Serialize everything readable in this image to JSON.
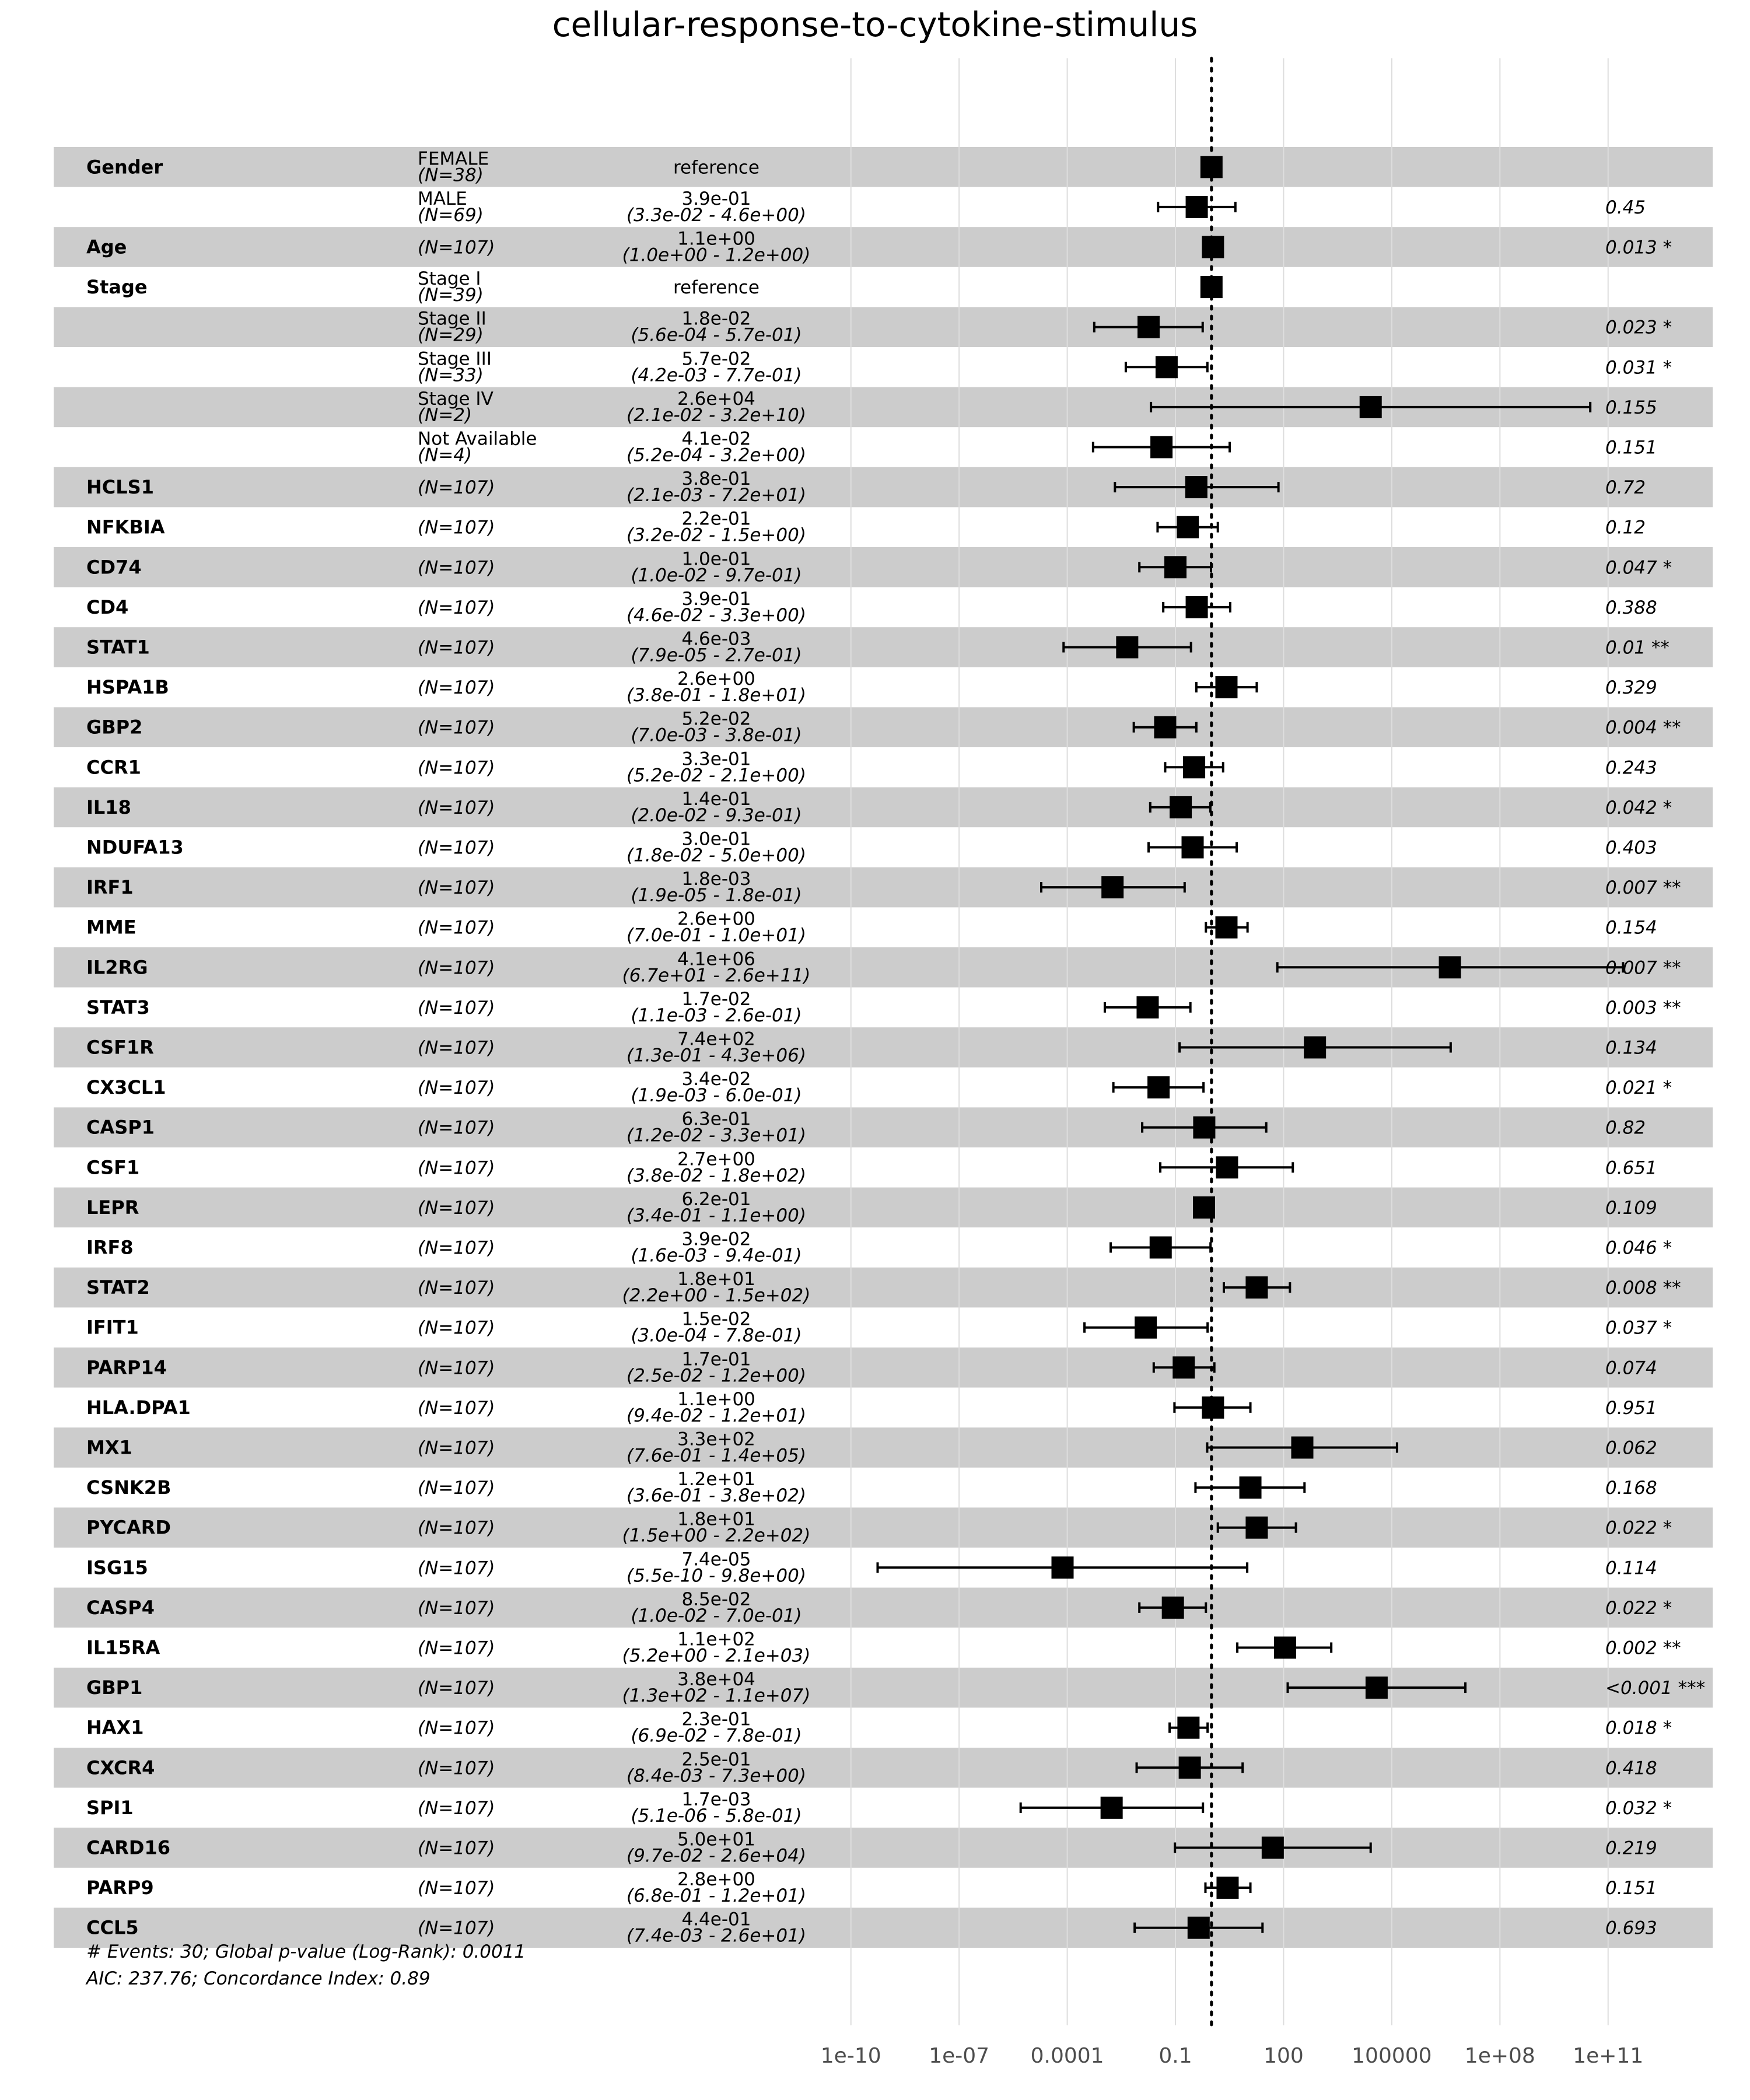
{
  "chart_data": {
    "type": "forest",
    "title": "cellular-response-to-cytokine-stimulus",
    "xscale": "log10",
    "xlim_log10": [
      -11.5,
      13.9
    ],
    "reference_line": 1,
    "x_ticks": [
      {
        "label": "1e-10",
        "value": 1e-10
      },
      {
        "label": "1e-07",
        "value": 1e-07
      },
      {
        "label": "0.0001",
        "value": 0.0001
      },
      {
        "label": "0.1",
        "value": 0.1
      },
      {
        "label": "100",
        "value": 100
      },
      {
        "label": "100000",
        "value": 100000
      },
      {
        "label": "1e+08",
        "value": 100000000.0
      },
      {
        "label": "1e+11",
        "value": 100000000000.0
      }
    ],
    "grid": true,
    "rows": [
      {
        "variable": "Gender",
        "level": "FEMALE",
        "n": "(N=38)",
        "est_text": "reference",
        "ci_text": "",
        "p_text": "",
        "hr": 1,
        "lo": null,
        "hi": null
      },
      {
        "variable": "",
        "level": "MALE",
        "n": "(N=69)",
        "est_text": "3.9e-01",
        "ci_text": "(3.3e-02 - 4.6e+00)",
        "p_text": "0.45",
        "hr": 0.39,
        "lo": 0.033,
        "hi": 4.6
      },
      {
        "variable": "Age",
        "level": "",
        "n": "(N=107)",
        "est_text": "1.1e+00",
        "ci_text": "(1.0e+00 - 1.2e+00)",
        "p_text": "0.013 *",
        "hr": 1.1,
        "lo": 1.0,
        "hi": 1.2
      },
      {
        "variable": "Stage",
        "level": "Stage I",
        "n": "(N=39)",
        "est_text": "reference",
        "ci_text": "",
        "p_text": "",
        "hr": 1,
        "lo": null,
        "hi": null
      },
      {
        "variable": "",
        "level": "Stage II",
        "n": "(N=29)",
        "est_text": "1.8e-02",
        "ci_text": "(5.6e-04 - 5.7e-01)",
        "p_text": "0.023 *",
        "hr": 0.018,
        "lo": 0.00056,
        "hi": 0.57
      },
      {
        "variable": "",
        "level": "Stage III",
        "n": "(N=33)",
        "est_text": "5.7e-02",
        "ci_text": "(4.2e-03 - 7.7e-01)",
        "p_text": "0.031 *",
        "hr": 0.057,
        "lo": 0.0042,
        "hi": 0.77
      },
      {
        "variable": "",
        "level": "Stage IV",
        "n": "(N=2)",
        "est_text": "2.6e+04",
        "ci_text": "(2.1e-02 - 3.2e+10)",
        "p_text": "0.155",
        "hr": 26000,
        "lo": 0.021,
        "hi": 32000000000.0
      },
      {
        "variable": "",
        "level": "Not Available",
        "n": "(N=4)",
        "est_text": "4.1e-02",
        "ci_text": "(5.2e-04 - 3.2e+00)",
        "p_text": "0.151",
        "hr": 0.041,
        "lo": 0.00052,
        "hi": 3.2
      },
      {
        "variable": "HCLS1",
        "level": "",
        "n": "(N=107)",
        "est_text": "3.8e-01",
        "ci_text": "(2.1e-03 - 7.2e+01)",
        "p_text": "0.72",
        "hr": 0.38,
        "lo": 0.0021,
        "hi": 72
      },
      {
        "variable": "NFKBIA",
        "level": "",
        "n": "(N=107)",
        "est_text": "2.2e-01",
        "ci_text": "(3.2e-02 - 1.5e+00)",
        "p_text": "0.12",
        "hr": 0.22,
        "lo": 0.032,
        "hi": 1.5
      },
      {
        "variable": "CD74",
        "level": "",
        "n": "(N=107)",
        "est_text": "1.0e-01",
        "ci_text": "(1.0e-02 - 9.7e-01)",
        "p_text": "0.047 *",
        "hr": 0.1,
        "lo": 0.01,
        "hi": 0.97
      },
      {
        "variable": "CD4",
        "level": "",
        "n": "(N=107)",
        "est_text": "3.9e-01",
        "ci_text": "(4.6e-02 - 3.3e+00)",
        "p_text": "0.388",
        "hr": 0.39,
        "lo": 0.046,
        "hi": 3.3
      },
      {
        "variable": "STAT1",
        "level": "",
        "n": "(N=107)",
        "est_text": "4.6e-03",
        "ci_text": "(7.9e-05 - 2.7e-01)",
        "p_text": "0.01 **",
        "hr": 0.0046,
        "lo": 7.9e-05,
        "hi": 0.27
      },
      {
        "variable": "HSPA1B",
        "level": "",
        "n": "(N=107)",
        "est_text": "2.6e+00",
        "ci_text": "(3.8e-01 - 1.8e+01)",
        "p_text": "0.329",
        "hr": 2.6,
        "lo": 0.38,
        "hi": 18
      },
      {
        "variable": "GBP2",
        "level": "",
        "n": "(N=107)",
        "est_text": "5.2e-02",
        "ci_text": "(7.0e-03 - 3.8e-01)",
        "p_text": "0.004 **",
        "hr": 0.052,
        "lo": 0.007,
        "hi": 0.38
      },
      {
        "variable": "CCR1",
        "level": "",
        "n": "(N=107)",
        "est_text": "3.3e-01",
        "ci_text": "(5.2e-02 - 2.1e+00)",
        "p_text": "0.243",
        "hr": 0.33,
        "lo": 0.052,
        "hi": 2.1
      },
      {
        "variable": "IL18",
        "level": "",
        "n": "(N=107)",
        "est_text": "1.4e-01",
        "ci_text": "(2.0e-02 - 9.3e-01)",
        "p_text": "0.042 *",
        "hr": 0.14,
        "lo": 0.02,
        "hi": 0.93
      },
      {
        "variable": "NDUFA13",
        "level": "",
        "n": "(N=107)",
        "est_text": "3.0e-01",
        "ci_text": "(1.8e-02 - 5.0e+00)",
        "p_text": "0.403",
        "hr": 0.3,
        "lo": 0.018,
        "hi": 5.0
      },
      {
        "variable": "IRF1",
        "level": "",
        "n": "(N=107)",
        "est_text": "1.8e-03",
        "ci_text": "(1.9e-05 - 1.8e-01)",
        "p_text": "0.007 **",
        "hr": 0.0018,
        "lo": 1.9e-05,
        "hi": 0.18
      },
      {
        "variable": "MME",
        "level": "",
        "n": "(N=107)",
        "est_text": "2.6e+00",
        "ci_text": "(7.0e-01 - 1.0e+01)",
        "p_text": "0.154",
        "hr": 2.6,
        "lo": 0.7,
        "hi": 10
      },
      {
        "variable": "IL2RG",
        "level": "",
        "n": "(N=107)",
        "est_text": "4.1e+06",
        "ci_text": "(6.7e+01 - 2.6e+11)",
        "p_text": "0.007 **",
        "hr": 4100000,
        "lo": 67,
        "hi": 260000000000.0
      },
      {
        "variable": "STAT3",
        "level": "",
        "n": "(N=107)",
        "est_text": "1.7e-02",
        "ci_text": "(1.1e-03 - 2.6e-01)",
        "p_text": "0.003 **",
        "hr": 0.017,
        "lo": 0.0011,
        "hi": 0.26
      },
      {
        "variable": "CSF1R",
        "level": "",
        "n": "(N=107)",
        "est_text": "7.4e+02",
        "ci_text": "(1.3e-01 - 4.3e+06)",
        "p_text": "0.134",
        "hr": 740,
        "lo": 0.13,
        "hi": 4300000
      },
      {
        "variable": "CX3CL1",
        "level": "",
        "n": "(N=107)",
        "est_text": "3.4e-02",
        "ci_text": "(1.9e-03 - 6.0e-01)",
        "p_text": "0.021 *",
        "hr": 0.034,
        "lo": 0.0019,
        "hi": 0.6
      },
      {
        "variable": "CASP1",
        "level": "",
        "n": "(N=107)",
        "est_text": "6.3e-01",
        "ci_text": "(1.2e-02 - 3.3e+01)",
        "p_text": "0.82",
        "hr": 0.63,
        "lo": 0.012,
        "hi": 33
      },
      {
        "variable": "CSF1",
        "level": "",
        "n": "(N=107)",
        "est_text": "2.7e+00",
        "ci_text": "(3.8e-02 - 1.8e+02)",
        "p_text": "0.651",
        "hr": 2.7,
        "lo": 0.038,
        "hi": 180
      },
      {
        "variable": "LEPR",
        "level": "",
        "n": "(N=107)",
        "est_text": "6.2e-01",
        "ci_text": "(3.4e-01 - 1.1e+00)",
        "p_text": "0.109",
        "hr": 0.62,
        "lo": 0.34,
        "hi": 1.1
      },
      {
        "variable": "IRF8",
        "level": "",
        "n": "(N=107)",
        "est_text": "3.9e-02",
        "ci_text": "(1.6e-03 - 9.4e-01)",
        "p_text": "0.046 *",
        "hr": 0.039,
        "lo": 0.0016,
        "hi": 0.94
      },
      {
        "variable": "STAT2",
        "level": "",
        "n": "(N=107)",
        "est_text": "1.8e+01",
        "ci_text": "(2.2e+00 - 1.5e+02)",
        "p_text": "0.008 **",
        "hr": 18,
        "lo": 2.2,
        "hi": 150
      },
      {
        "variable": "IFIT1",
        "level": "",
        "n": "(N=107)",
        "est_text": "1.5e-02",
        "ci_text": "(3.0e-04 - 7.8e-01)",
        "p_text": "0.037 *",
        "hr": 0.015,
        "lo": 0.0003,
        "hi": 0.78
      },
      {
        "variable": "PARP14",
        "level": "",
        "n": "(N=107)",
        "est_text": "1.7e-01",
        "ci_text": "(2.5e-02 - 1.2e+00)",
        "p_text": "0.074",
        "hr": 0.17,
        "lo": 0.025,
        "hi": 1.2
      },
      {
        "variable": "HLA.DPA1",
        "level": "",
        "n": "(N=107)",
        "est_text": "1.1e+00",
        "ci_text": "(9.4e-02 - 1.2e+01)",
        "p_text": "0.951",
        "hr": 1.1,
        "lo": 0.094,
        "hi": 12
      },
      {
        "variable": "MX1",
        "level": "",
        "n": "(N=107)",
        "est_text": "3.3e+02",
        "ci_text": "(7.6e-01 - 1.4e+05)",
        "p_text": "0.062",
        "hr": 330,
        "lo": 0.76,
        "hi": 140000
      },
      {
        "variable": "CSNK2B",
        "level": "",
        "n": "(N=107)",
        "est_text": "1.2e+01",
        "ci_text": "(3.6e-01 - 3.8e+02)",
        "p_text": "0.168",
        "hr": 12,
        "lo": 0.36,
        "hi": 380
      },
      {
        "variable": "PYCARD",
        "level": "",
        "n": "(N=107)",
        "est_text": "1.8e+01",
        "ci_text": "(1.5e+00 - 2.2e+02)",
        "p_text": "0.022 *",
        "hr": 18,
        "lo": 1.5,
        "hi": 220
      },
      {
        "variable": "ISG15",
        "level": "",
        "n": "(N=107)",
        "est_text": "7.4e-05",
        "ci_text": "(5.5e-10 - 9.8e+00)",
        "p_text": "0.114",
        "hr": 7.4e-05,
        "lo": 5.5e-10,
        "hi": 9.8
      },
      {
        "variable": "CASP4",
        "level": "",
        "n": "(N=107)",
        "est_text": "8.5e-02",
        "ci_text": "(1.0e-02 - 7.0e-01)",
        "p_text": "0.022 *",
        "hr": 0.085,
        "lo": 0.01,
        "hi": 0.7
      },
      {
        "variable": "IL15RA",
        "level": "",
        "n": "(N=107)",
        "est_text": "1.1e+02",
        "ci_text": "(5.2e+00 - 2.1e+03)",
        "p_text": "0.002 **",
        "hr": 110,
        "lo": 5.2,
        "hi": 2100
      },
      {
        "variable": "GBP1",
        "level": "",
        "n": "(N=107)",
        "est_text": "3.8e+04",
        "ci_text": "(1.3e+02 - 1.1e+07)",
        "p_text": "<0.001 ***",
        "hr": 38000,
        "lo": 130,
        "hi": 11000000
      },
      {
        "variable": "HAX1",
        "level": "",
        "n": "(N=107)",
        "est_text": "2.3e-01",
        "ci_text": "(6.9e-02 - 7.8e-01)",
        "p_text": "0.018 *",
        "hr": 0.23,
        "lo": 0.069,
        "hi": 0.78
      },
      {
        "variable": "CXCR4",
        "level": "",
        "n": "(N=107)",
        "est_text": "2.5e-01",
        "ci_text": "(8.4e-03 - 7.3e+00)",
        "p_text": "0.418",
        "hr": 0.25,
        "lo": 0.0084,
        "hi": 7.3
      },
      {
        "variable": "SPI1",
        "level": "",
        "n": "(N=107)",
        "est_text": "1.7e-03",
        "ci_text": "(5.1e-06 - 5.8e-01)",
        "p_text": "0.032 *",
        "hr": 0.0017,
        "lo": 5.1e-06,
        "hi": 0.58
      },
      {
        "variable": "CARD16",
        "level": "",
        "n": "(N=107)",
        "est_text": "5.0e+01",
        "ci_text": "(9.7e-02 - 2.6e+04)",
        "p_text": "0.219",
        "hr": 50,
        "lo": 0.097,
        "hi": 26000
      },
      {
        "variable": "PARP9",
        "level": "",
        "n": "(N=107)",
        "est_text": "2.8e+00",
        "ci_text": "(6.8e-01 - 1.2e+01)",
        "p_text": "0.151",
        "hr": 2.8,
        "lo": 0.68,
        "hi": 12
      },
      {
        "variable": "CCL5",
        "level": "",
        "n": "(N=107)",
        "est_text": "4.4e-01",
        "ci_text": "(7.4e-03 - 2.6e+01)",
        "p_text": "0.693",
        "hr": 0.44,
        "lo": 0.0074,
        "hi": 26
      }
    ],
    "footer": [
      "# Events: 30; Global p-value (Log-Rank): 0.0011",
      "AIC: 237.76; Concordance Index: 0.89"
    ],
    "colors": {
      "stripe": "#cccccc",
      "grid": "#dddddd",
      "marker": "#000000",
      "tick_text": "#4d4d4d"
    }
  }
}
